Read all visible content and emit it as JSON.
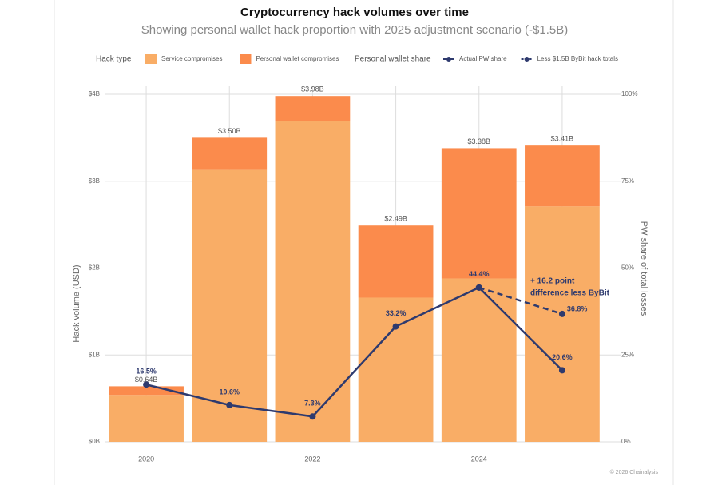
{
  "chart_data": {
    "type": "bar",
    "title": "Cryptocurrency hack volumes over time",
    "subtitle": "Showing personal wallet hack proportion with 2025 adjustment scenario (-$1.5B)",
    "legend_bar_title": "Hack type",
    "legend_line_title": "Personal wallet share",
    "y_label": "Hack volume (USD)",
    "y2_label": "PW share of total losses",
    "categories": [
      "2020",
      null,
      "2022",
      null,
      "2024",
      null
    ],
    "series": [
      {
        "name": "Service compromises",
        "type": "bar",
        "color": "#f9ad66",
        "values": [
          0.54,
          3.13,
          3.69,
          1.66,
          1.88,
          2.71
        ]
      },
      {
        "name": "Personal wallet compromises",
        "type": "bar",
        "color": "#fb8b4c",
        "values": [
          0.1,
          0.37,
          0.29,
          0.83,
          1.5,
          0.7
        ]
      },
      {
        "name": "Actual PW share",
        "type": "line",
        "axis": "y2",
        "color": "#2e3a6e",
        "dash": false,
        "values": [
          16.5,
          10.6,
          7.3,
          33.2,
          44.4,
          20.6
        ],
        "value_labels": [
          "16.5%",
          "10.6%",
          "7.3%",
          "33.2%",
          "44.4%",
          "20.6%"
        ]
      },
      {
        "name": "Less $1.5B ByBit hack totals",
        "type": "line",
        "axis": "y2",
        "color": "#2e3a6e",
        "dash": true,
        "values": [
          null,
          null,
          null,
          null,
          44.4,
          36.8
        ],
        "value_labels": [
          null,
          null,
          null,
          null,
          null,
          "36.8%"
        ]
      }
    ],
    "totals": [
      0.64,
      3.5,
      3.98,
      2.49,
      3.38,
      3.41
    ],
    "total_labels": [
      "$0.64B",
      "$3.50B",
      "$3.98B",
      "$2.49B",
      "$3.38B",
      "$3.41B"
    ],
    "annotation": [
      "+ 16.2 point",
      "difference less ByBit"
    ],
    "ylim": [
      0,
      4
    ],
    "yticks": [
      {
        "value": 0,
        "label": "$0B"
      },
      {
        "value": 1,
        "label": "$1B"
      },
      {
        "value": 2,
        "label": "$2B"
      },
      {
        "value": 3,
        "label": "$3B"
      },
      {
        "value": 4,
        "label": "$4B"
      }
    ],
    "y2lim": [
      0,
      100
    ],
    "y2ticks": [
      {
        "value": 0,
        "label": "0%"
      },
      {
        "value": 25,
        "label": "25%"
      },
      {
        "value": 50,
        "label": "50%"
      },
      {
        "value": 75,
        "label": "75%"
      },
      {
        "value": 100,
        "label": "100%"
      }
    ],
    "grid": true,
    "footer": "© 2026 Chainalysis"
  }
}
